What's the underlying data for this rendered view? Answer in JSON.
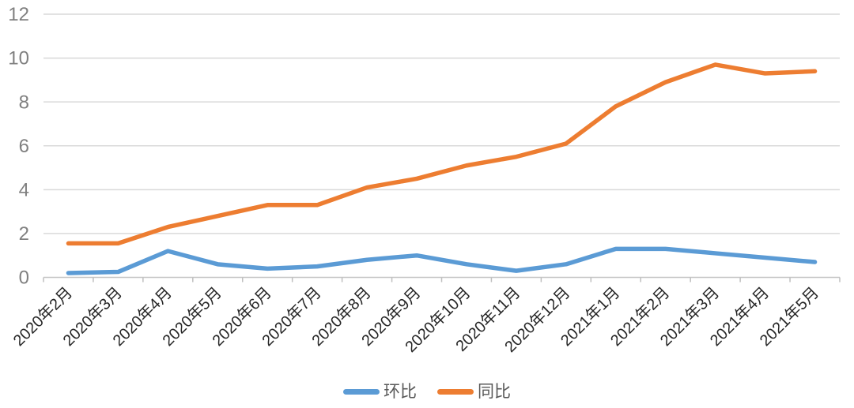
{
  "chart_data": {
    "type": "line",
    "title": "",
    "xlabel": "",
    "ylabel": "",
    "categories": [
      "2020年2月",
      "2020年3月",
      "2020年4月",
      "2020年5月",
      "2020年6月",
      "2020年7月",
      "2020年8月",
      "2020年9月",
      "2020年10月",
      "2020年11月",
      "2020年12月",
      "2021年1月",
      "2021年2月",
      "2021年3月",
      "2021年4月",
      "2021年5月"
    ],
    "series": [
      {
        "name": "环比",
        "color": "#5B9BD5",
        "values": [
          0.2,
          0.25,
          1.2,
          0.6,
          0.4,
          0.5,
          0.8,
          1.0,
          0.6,
          0.3,
          0.6,
          1.3,
          1.3,
          1.1,
          0.9,
          0.7
        ]
      },
      {
        "name": "同比",
        "color": "#ED7D31",
        "values": [
          1.55,
          1.55,
          2.3,
          2.8,
          3.3,
          3.3,
          4.1,
          4.5,
          5.1,
          5.5,
          6.1,
          7.8,
          8.9,
          9.7,
          9.3,
          9.4
        ]
      }
    ],
    "ylim": [
      0,
      12
    ],
    "y_ticks": [
      0,
      2,
      4,
      6,
      8,
      10,
      12
    ],
    "grid": true,
    "legend_position": "bottom-center",
    "x_labels_rotated_degrees": 45
  },
  "colors": {
    "background": "#FFFFFF",
    "gridline": "#D9D9D9",
    "axis_line": "#C6C6C6",
    "tick_mark": "#BFBFBF",
    "y_label_text": "#808080",
    "x_label_text": "#262626",
    "legend_text": "#595959",
    "series_huanbi": "#5B9BD5",
    "series_tongbi": "#ED7D31"
  }
}
